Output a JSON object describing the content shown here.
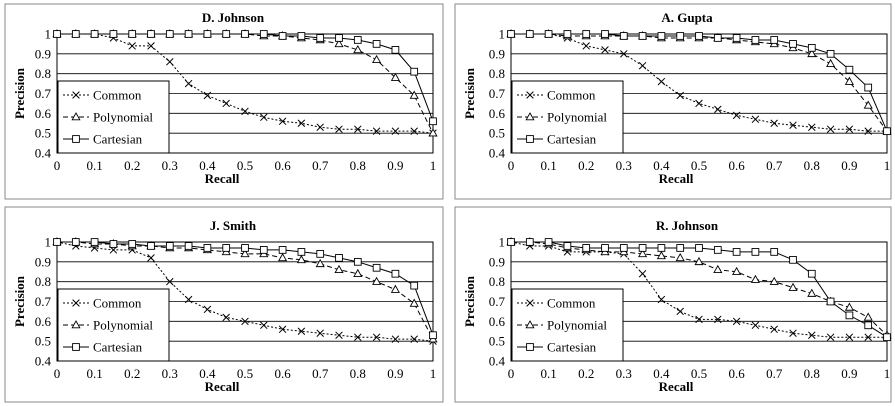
{
  "chart_data": [
    {
      "type": "line",
      "title": "D. Johnson",
      "xlabel": "Recall",
      "ylabel": "Precision",
      "xlim": [
        0,
        1
      ],
      "ylim": [
        0.4,
        1
      ],
      "x_ticks": [
        "0",
        "0.1",
        "0.2",
        "0.3",
        "0.4",
        "0.5",
        "0.6",
        "0.7",
        "0.8",
        "0.9",
        "1"
      ],
      "y_ticks": [
        "0.4",
        "0.5",
        "0.6",
        "0.7",
        "0.8",
        "0.9",
        "1"
      ],
      "legend_position": "left",
      "grid": "horizontal",
      "series": [
        {
          "name": "Common",
          "marker": "x",
          "dash": "dotted",
          "x": [
            0,
            0.05,
            0.1,
            0.15,
            0.2,
            0.25,
            0.3,
            0.35,
            0.4,
            0.45,
            0.5,
            0.55,
            0.6,
            0.65,
            0.7,
            0.75,
            0.8,
            0.85,
            0.9,
            0.95,
            1
          ],
          "y": [
            1,
            1,
            1,
            0.98,
            0.94,
            0.94,
            0.86,
            0.75,
            0.69,
            0.65,
            0.61,
            0.58,
            0.56,
            0.55,
            0.53,
            0.52,
            0.52,
            0.51,
            0.51,
            0.51,
            0.5
          ]
        },
        {
          "name": "Polynomial",
          "marker": "triangle",
          "dash": "dashed",
          "x": [
            0,
            0.05,
            0.1,
            0.15,
            0.2,
            0.25,
            0.3,
            0.35,
            0.4,
            0.45,
            0.5,
            0.55,
            0.6,
            0.65,
            0.7,
            0.75,
            0.8,
            0.85,
            0.9,
            0.95,
            1
          ],
          "y": [
            1,
            1,
            1,
            1,
            1,
            1,
            1,
            1,
            1,
            1,
            1,
            0.99,
            0.99,
            0.98,
            0.97,
            0.95,
            0.92,
            0.87,
            0.78,
            0.69,
            0.5
          ]
        },
        {
          "name": "Cartesian",
          "marker": "square",
          "dash": "solid",
          "x": [
            0,
            0.05,
            0.1,
            0.15,
            0.2,
            0.25,
            0.3,
            0.35,
            0.4,
            0.45,
            0.5,
            0.55,
            0.6,
            0.65,
            0.7,
            0.75,
            0.8,
            0.85,
            0.9,
            0.95,
            1
          ],
          "y": [
            1,
            1,
            1,
            1,
            1,
            1,
            1,
            1,
            1,
            1,
            1,
            1,
            0.99,
            0.99,
            0.98,
            0.98,
            0.97,
            0.95,
            0.92,
            0.81,
            0.56
          ]
        }
      ]
    },
    {
      "type": "line",
      "title": "A. Gupta",
      "xlabel": "Recall",
      "ylabel": "Precision",
      "xlim": [
        0,
        1
      ],
      "ylim": [
        0.4,
        1
      ],
      "x_ticks": [
        "0",
        "0.1",
        "0.2",
        "0.3",
        "0.4",
        "0.5",
        "0.6",
        "0.7",
        "0.8",
        "0.9",
        "1"
      ],
      "y_ticks": [
        "0.4",
        "0.5",
        "0.6",
        "0.7",
        "0.8",
        "0.9",
        "1"
      ],
      "legend_position": "left",
      "grid": "horizontal",
      "series": [
        {
          "name": "Common",
          "marker": "x",
          "dash": "dotted",
          "x": [
            0,
            0.05,
            0.1,
            0.15,
            0.2,
            0.25,
            0.3,
            0.35,
            0.4,
            0.45,
            0.5,
            0.55,
            0.6,
            0.65,
            0.7,
            0.75,
            0.8,
            0.85,
            0.9,
            0.95,
            1
          ],
          "y": [
            1,
            1,
            1,
            0.98,
            0.94,
            0.92,
            0.9,
            0.84,
            0.76,
            0.69,
            0.65,
            0.62,
            0.59,
            0.57,
            0.55,
            0.54,
            0.53,
            0.52,
            0.52,
            0.51,
            0.51
          ]
        },
        {
          "name": "Polynomial",
          "marker": "triangle",
          "dash": "dashed",
          "x": [
            0,
            0.05,
            0.1,
            0.15,
            0.2,
            0.25,
            0.3,
            0.35,
            0.4,
            0.45,
            0.5,
            0.55,
            0.6,
            0.65,
            0.7,
            0.75,
            0.8,
            0.85,
            0.9,
            0.95,
            1
          ],
          "y": [
            1,
            1,
            1,
            0.99,
            0.99,
            0.99,
            0.99,
            0.99,
            0.98,
            0.98,
            0.98,
            0.98,
            0.97,
            0.96,
            0.95,
            0.93,
            0.9,
            0.85,
            0.76,
            0.64,
            0.51
          ]
        },
        {
          "name": "Cartesian",
          "marker": "square",
          "dash": "solid",
          "x": [
            0,
            0.05,
            0.1,
            0.15,
            0.2,
            0.25,
            0.3,
            0.35,
            0.4,
            0.45,
            0.5,
            0.55,
            0.6,
            0.65,
            0.7,
            0.75,
            0.8,
            0.85,
            0.9,
            0.95,
            1
          ],
          "y": [
            1,
            1,
            1,
            1,
            1,
            1,
            0.99,
            0.99,
            0.99,
            0.99,
            0.99,
            0.98,
            0.98,
            0.97,
            0.97,
            0.95,
            0.93,
            0.9,
            0.82,
            0.73,
            0.51
          ]
        }
      ]
    },
    {
      "type": "line",
      "title": "J. Smith",
      "xlabel": "Recall",
      "ylabel": "Precision",
      "xlim": [
        0,
        1
      ],
      "ylim": [
        0.4,
        1
      ],
      "x_ticks": [
        "0",
        "0.1",
        "0.2",
        "0.3",
        "0.4",
        "0.5",
        "0.6",
        "0.7",
        "0.8",
        "0.9",
        "1"
      ],
      "y_ticks": [
        "0.4",
        "0.5",
        "0.6",
        "0.7",
        "0.8",
        "0.9",
        "1"
      ],
      "legend_position": "left",
      "grid": "horizontal",
      "series": [
        {
          "name": "Common",
          "marker": "x",
          "dash": "dotted",
          "x": [
            0,
            0.05,
            0.1,
            0.15,
            0.2,
            0.25,
            0.3,
            0.35,
            0.4,
            0.45,
            0.5,
            0.55,
            0.6,
            0.65,
            0.7,
            0.75,
            0.8,
            0.85,
            0.9,
            0.95,
            1
          ],
          "y": [
            1,
            0.98,
            0.97,
            0.96,
            0.96,
            0.92,
            0.8,
            0.71,
            0.66,
            0.62,
            0.6,
            0.58,
            0.56,
            0.55,
            0.54,
            0.53,
            0.52,
            0.52,
            0.51,
            0.51,
            0.5
          ]
        },
        {
          "name": "Polynomial",
          "marker": "triangle",
          "dash": "dashed",
          "x": [
            0,
            0.05,
            0.1,
            0.15,
            0.2,
            0.25,
            0.3,
            0.35,
            0.4,
            0.45,
            0.5,
            0.55,
            0.6,
            0.65,
            0.7,
            0.75,
            0.8,
            0.85,
            0.9,
            0.95,
            1
          ],
          "y": [
            1,
            1,
            0.99,
            0.99,
            0.98,
            0.98,
            0.97,
            0.97,
            0.96,
            0.95,
            0.94,
            0.94,
            0.92,
            0.91,
            0.89,
            0.86,
            0.84,
            0.8,
            0.76,
            0.69,
            0.51
          ]
        },
        {
          "name": "Cartesian",
          "marker": "square",
          "dash": "solid",
          "x": [
            0,
            0.05,
            0.1,
            0.15,
            0.2,
            0.25,
            0.3,
            0.35,
            0.4,
            0.45,
            0.5,
            0.55,
            0.6,
            0.65,
            0.7,
            0.75,
            0.8,
            0.85,
            0.9,
            0.95,
            1
          ],
          "y": [
            1,
            1,
            1,
            0.99,
            0.99,
            0.98,
            0.98,
            0.98,
            0.97,
            0.97,
            0.97,
            0.96,
            0.96,
            0.95,
            0.94,
            0.92,
            0.9,
            0.87,
            0.84,
            0.78,
            0.53
          ]
        }
      ]
    },
    {
      "type": "line",
      "title": "R. Johnson",
      "xlabel": "Recall",
      "ylabel": "Precision",
      "xlim": [
        0,
        1
      ],
      "ylim": [
        0.4,
        1
      ],
      "x_ticks": [
        "0",
        "0.1",
        "0.2",
        "0.3",
        "0.4",
        "0.5",
        "0.6",
        "0.7",
        "0.8",
        "0.9",
        "1"
      ],
      "y_ticks": [
        "0.4",
        "0.5",
        "0.6",
        "0.7",
        "0.8",
        "0.9",
        "1"
      ],
      "legend_position": "left",
      "grid": "horizontal",
      "series": [
        {
          "name": "Common",
          "marker": "x",
          "dash": "dotted",
          "x": [
            0,
            0.05,
            0.1,
            0.15,
            0.2,
            0.25,
            0.3,
            0.35,
            0.4,
            0.45,
            0.5,
            0.55,
            0.6,
            0.65,
            0.7,
            0.75,
            0.8,
            0.85,
            0.9,
            0.95,
            1
          ],
          "y": [
            1,
            0.98,
            0.98,
            0.95,
            0.95,
            0.95,
            0.94,
            0.84,
            0.71,
            0.65,
            0.61,
            0.61,
            0.6,
            0.58,
            0.56,
            0.54,
            0.53,
            0.52,
            0.52,
            0.52,
            0.52
          ]
        },
        {
          "name": "Polynomial",
          "marker": "triangle",
          "dash": "dashed",
          "x": [
            0,
            0.05,
            0.1,
            0.15,
            0.2,
            0.25,
            0.3,
            0.35,
            0.4,
            0.45,
            0.5,
            0.55,
            0.6,
            0.65,
            0.7,
            0.75,
            0.8,
            0.85,
            0.9,
            0.95,
            1
          ],
          "y": [
            1,
            1,
            0.99,
            0.97,
            0.96,
            0.95,
            0.95,
            0.94,
            0.93,
            0.92,
            0.9,
            0.86,
            0.85,
            0.81,
            0.8,
            0.77,
            0.74,
            0.7,
            0.67,
            0.62,
            0.53
          ]
        },
        {
          "name": "Cartesian",
          "marker": "square",
          "dash": "solid",
          "x": [
            0,
            0.05,
            0.1,
            0.15,
            0.2,
            0.25,
            0.3,
            0.35,
            0.4,
            0.45,
            0.5,
            0.55,
            0.6,
            0.65,
            0.7,
            0.75,
            0.8,
            0.85,
            0.9,
            0.95,
            1
          ],
          "y": [
            1,
            1,
            1,
            0.98,
            0.97,
            0.97,
            0.97,
            0.97,
            0.97,
            0.97,
            0.97,
            0.96,
            0.95,
            0.95,
            0.95,
            0.91,
            0.84,
            0.7,
            0.63,
            0.58,
            0.52
          ]
        }
      ]
    }
  ]
}
